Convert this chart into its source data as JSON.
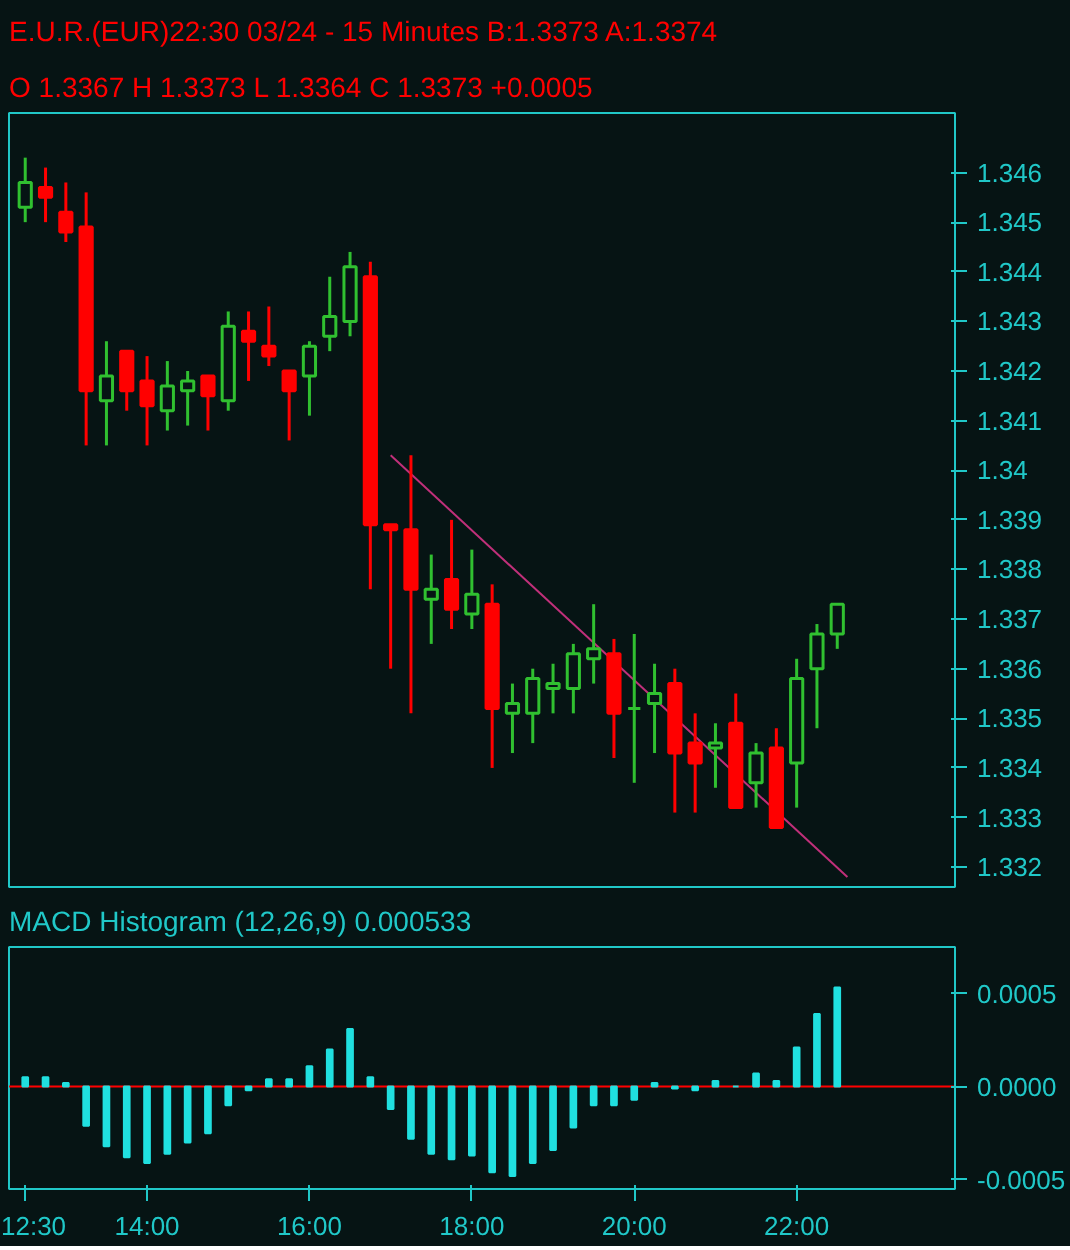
{
  "chart_data": [
    {
      "type": "candlestick",
      "title": "E.U.R.(EUR)22:30 03/24   - 15 Minutes B:1.3373 A:1.3374",
      "subtitle": "O 1.3367 H 1.3373 L 1.3364 C 1.3373  +0.0005",
      "x": [
        12.5,
        12.75,
        13,
        13.25,
        13.5,
        13.75,
        14,
        14.25,
        14.5,
        14.75,
        15,
        15.25,
        15.5,
        15.75,
        16,
        16.25,
        16.5,
        16.75,
        17,
        17.25,
        17.5,
        17.75,
        18,
        18.25,
        18.5,
        18.75,
        19,
        19.25,
        19.5,
        19.75,
        20,
        20.25,
        20.5,
        20.75,
        21,
        21.25,
        21.5,
        21.75,
        22,
        22.25,
        22.5
      ],
      "ohlc": [
        [
          1.3453,
          1.3463,
          1.345,
          1.3458
        ],
        [
          1.3457,
          1.3461,
          1.345,
          1.3455
        ],
        [
          1.3452,
          1.3458,
          1.3446,
          1.3448
        ],
        [
          1.3449,
          1.3456,
          1.3405,
          1.3416
        ],
        [
          1.3414,
          1.3426,
          1.3405,
          1.3419
        ],
        [
          1.3424,
          1.3424,
          1.3412,
          1.3416
        ],
        [
          1.3418,
          1.3423,
          1.3405,
          1.3413
        ],
        [
          1.3412,
          1.3422,
          1.3408,
          1.3417
        ],
        [
          1.3416,
          1.342,
          1.3409,
          1.3418
        ],
        [
          1.3419,
          1.3419,
          1.3408,
          1.3415
        ],
        [
          1.3414,
          1.3432,
          1.3412,
          1.3429
        ],
        [
          1.3428,
          1.3432,
          1.3418,
          1.3426
        ],
        [
          1.3425,
          1.3433,
          1.3421,
          1.3423
        ],
        [
          1.342,
          1.342,
          1.3406,
          1.3416
        ],
        [
          1.3419,
          1.3426,
          1.3411,
          1.3425
        ],
        [
          1.3427,
          1.3439,
          1.3424,
          1.3431
        ],
        [
          1.343,
          1.3444,
          1.3427,
          1.3441
        ],
        [
          1.3439,
          1.3442,
          1.3376,
          1.3389
        ],
        [
          1.3389,
          1.3389,
          1.336,
          1.3388
        ],
        [
          1.3388,
          1.3403,
          1.3351,
          1.3376
        ],
        [
          1.3374,
          1.3383,
          1.3365,
          1.3376
        ],
        [
          1.3378,
          1.339,
          1.3368,
          1.3372
        ],
        [
          1.3371,
          1.3384,
          1.3368,
          1.3375
        ],
        [
          1.3373,
          1.3377,
          1.334,
          1.3352
        ],
        [
          1.3351,
          1.3357,
          1.3343,
          1.3353
        ],
        [
          1.3351,
          1.336,
          1.3345,
          1.3358
        ],
        [
          1.3356,
          1.3361,
          1.3351,
          1.3357
        ],
        [
          1.3356,
          1.3365,
          1.3351,
          1.3363
        ],
        [
          1.3362,
          1.3373,
          1.3357,
          1.3364
        ],
        [
          1.3363,
          1.3366,
          1.3342,
          1.3351
        ],
        [
          1.3352,
          1.3367,
          1.3337,
          1.3352
        ],
        [
          1.3353,
          1.3361,
          1.3343,
          1.3355
        ],
        [
          1.3357,
          1.336,
          1.3331,
          1.3343
        ],
        [
          1.3345,
          1.3351,
          1.3331,
          1.3341
        ],
        [
          1.3344,
          1.3349,
          1.3336,
          1.3345
        ],
        [
          1.3349,
          1.3355,
          1.3332,
          1.3332
        ],
        [
          1.3337,
          1.3345,
          1.3332,
          1.3343
        ],
        [
          1.3344,
          1.3348,
          1.3328,
          1.3328
        ],
        [
          1.3341,
          1.3362,
          1.3332,
          1.3358
        ],
        [
          1.336,
          1.3369,
          1.3348,
          1.3367
        ],
        [
          1.3367,
          1.3373,
          1.3364,
          1.3373
        ]
      ],
      "colors": [
        "#30c030",
        "#ff0000",
        "#ff0000",
        "#ff0000",
        "#30c030",
        "#ff0000",
        "#ff0000",
        "#30c030",
        "#30c030",
        "#ff0000",
        "#30c030",
        "#ff0000",
        "#ff0000",
        "#ff0000",
        "#30c030",
        "#30c030",
        "#30c030",
        "#ff0000",
        "#ff0000",
        "#ff0000",
        "#30c030",
        "#ff0000",
        "#30c030",
        "#ff0000",
        "#30c030",
        "#30c030",
        "#30c030",
        "#30c030",
        "#30c030",
        "#ff0000",
        "#30c030",
        "#30c030",
        "#ff0000",
        "#ff0000",
        "#30c030",
        "#ff0000",
        "#30c030",
        "#ff0000",
        "#30c030",
        "#30c030",
        "#30c030"
      ],
      "series": [
        {
          "type": "line",
          "x": [
            17.0,
            22.625
          ],
          "values": [
            1.3403,
            1.3318
          ],
          "color": "#c0307a"
        }
      ],
      "xlim": [
        12.3,
        23.95
      ],
      "ylim": [
        1.3316,
        1.3472
      ],
      "yticks": [
        1.332,
        1.333,
        1.334,
        1.335,
        1.336,
        1.337,
        1.338,
        1.339,
        1.34,
        1.341,
        1.342,
        1.343,
        1.344,
        1.345,
        1.346
      ],
      "tick_labels": "y"
    },
    {
      "type": "bar",
      "title": "MACD Histogram (12,26,9)   0.000533",
      "x": [
        12.5,
        12.75,
        13,
        13.25,
        13.5,
        13.75,
        14,
        14.25,
        14.5,
        14.75,
        15,
        15.25,
        15.5,
        15.75,
        16,
        16.25,
        16.5,
        16.75,
        17,
        17.25,
        17.5,
        17.75,
        18,
        18.25,
        18.5,
        18.75,
        19,
        19.25,
        19.5,
        19.75,
        20,
        20.25,
        20.5,
        20.75,
        21,
        21.25,
        21.5,
        21.75,
        22,
        22.25,
        22.5
      ],
      "values": [
        5e-05,
        5e-05,
        2e-05,
        -0.00021,
        -0.00032,
        -0.00038,
        -0.00041,
        -0.00036,
        -0.0003,
        -0.00025,
        -0.0001,
        -2e-05,
        4e-05,
        4e-05,
        0.00011,
        0.0002,
        0.00031,
        5e-05,
        -0.00012,
        -0.00028,
        -0.00036,
        -0.00039,
        -0.00037,
        -0.00046,
        -0.00048,
        -0.00041,
        -0.00034,
        -0.00022,
        -0.0001,
        -0.0001,
        -7e-05,
        2e-05,
        -1e-05,
        -2e-05,
        3e-05,
        0.0,
        7e-05,
        3e-05,
        0.00021,
        0.00039,
        0.000533
      ],
      "color": "#20e0e0",
      "ref_lines": [
        {
          "axis": "y",
          "value": 0,
          "color": "#ff0000"
        }
      ],
      "xlim": [
        12.3,
        23.95
      ],
      "xticks": [
        {
          "value": 12.5,
          "label": "12:30"
        },
        {
          "value": 14,
          "label": "14:00"
        },
        {
          "value": 16,
          "label": "16:00"
        },
        {
          "value": 18,
          "label": "18:00"
        },
        {
          "value": 20,
          "label": "20:00"
        },
        {
          "value": 22,
          "label": "22:00"
        }
      ],
      "ylim": [
        -0.00055,
        0.00075
      ],
      "yticks": [
        {
          "value": 0.0005,
          "label": "0.0005"
        },
        {
          "value": 0,
          "label": "0.0000"
        },
        {
          "value": -0.0005,
          "label": "-0.0005"
        }
      ]
    }
  ]
}
